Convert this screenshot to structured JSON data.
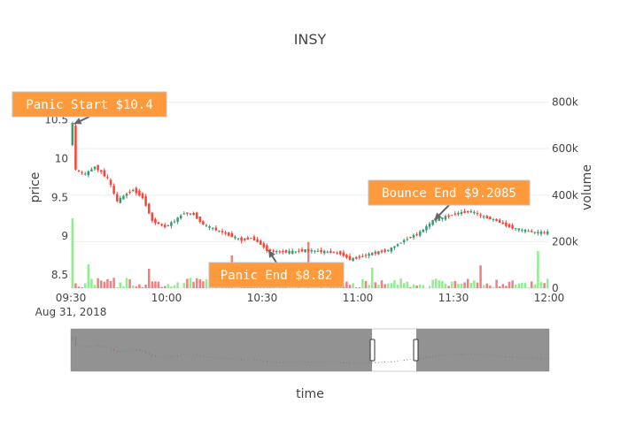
{
  "chart_data": {
    "type": "candlestick",
    "title": "INSY",
    "xlabel": "time",
    "ylabel": "price",
    "y2label": "volume",
    "x_range": [
      "09:30",
      "12:00"
    ],
    "x_ticks": [
      "09:30",
      "10:00",
      "10:30",
      "11:00",
      "11:30",
      "12:00"
    ],
    "x_date_label": "Aug 31, 2018",
    "y_range": [
      8.33,
      10.85
    ],
    "y_ticks": [
      "8.5",
      "9",
      "9.5",
      "10",
      "10.5"
    ],
    "y_tick_values": [
      8.5,
      9,
      9.5,
      10,
      10.5
    ],
    "y2_range": [
      0,
      840000
    ],
    "y2_ticks": [
      "0",
      "200k",
      "400k",
      "600k",
      "800k"
    ],
    "y2_tick_values": [
      0,
      200000,
      400000,
      600000,
      800000
    ],
    "up_color": "#3d9970",
    "down_color": "#ff4136",
    "volume_up_color": "#90ee90",
    "volume_down_color": "#f08080",
    "annotation_bg": "#ff9a3c",
    "annotations": [
      {
        "text": "Panic Start $10.4",
        "x": "09:31",
        "y": 10.45
      },
      {
        "text": "Panic End $8.82",
        "x": "10:32",
        "y": 8.82
      },
      {
        "text": "Bounce End $9.2085",
        "x": "11:24",
        "y": 9.21
      }
    ],
    "price_keypoints": [
      [
        "09:30",
        10.2
      ],
      [
        "09:31",
        10.45
      ],
      [
        "09:32",
        9.85
      ],
      [
        "09:35",
        9.8
      ],
      [
        "09:38",
        9.9
      ],
      [
        "09:42",
        9.75
      ],
      [
        "09:45",
        9.45
      ],
      [
        "09:48",
        9.55
      ],
      [
        "09:50",
        9.6
      ],
      [
        "09:53",
        9.5
      ],
      [
        "09:56",
        9.2
      ],
      [
        "10:00",
        9.12
      ],
      [
        "10:03",
        9.2
      ],
      [
        "10:06",
        9.3
      ],
      [
        "10:09",
        9.28
      ],
      [
        "10:12",
        9.15
      ],
      [
        "10:15",
        9.1
      ],
      [
        "10:18",
        9.05
      ],
      [
        "10:21",
        9.0
      ],
      [
        "10:24",
        8.95
      ],
      [
        "10:27",
        8.98
      ],
      [
        "10:30",
        8.9
      ],
      [
        "10:32",
        8.82
      ],
      [
        "10:36",
        8.8
      ],
      [
        "10:40",
        8.8
      ],
      [
        "10:44",
        8.82
      ],
      [
        "10:50",
        8.8
      ],
      [
        "10:55",
        8.78
      ],
      [
        "10:58",
        8.7
      ],
      [
        "11:00",
        8.72
      ],
      [
        "11:05",
        8.78
      ],
      [
        "11:10",
        8.82
      ],
      [
        "11:15",
        8.95
      ],
      [
        "11:20",
        9.05
      ],
      [
        "11:24",
        9.2
      ],
      [
        "11:28",
        9.25
      ],
      [
        "11:32",
        9.3
      ],
      [
        "11:36",
        9.32
      ],
      [
        "11:40",
        9.25
      ],
      [
        "11:44",
        9.2
      ],
      [
        "11:48",
        9.12
      ],
      [
        "11:52",
        9.08
      ],
      [
        "11:56",
        9.05
      ],
      [
        "12:00",
        9.05
      ]
    ]
  }
}
